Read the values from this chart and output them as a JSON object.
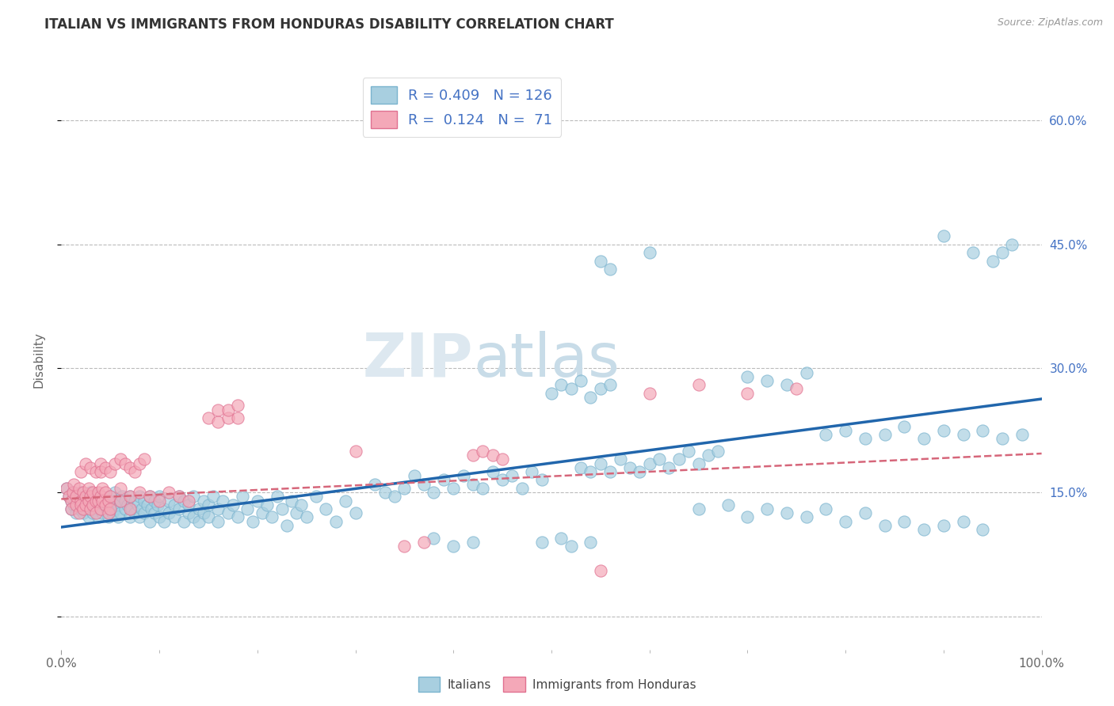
{
  "title": "ITALIAN VS IMMIGRANTS FROM HONDURAS DISABILITY CORRELATION CHART",
  "source": "Source: ZipAtlas.com",
  "ylabel": "Disability",
  "xlim": [
    0.0,
    1.0
  ],
  "ylim": [
    -0.04,
    0.66
  ],
  "yticks": [
    0.0,
    0.15,
    0.3,
    0.45,
    0.6
  ],
  "ytick_labels": [
    "",
    "15.0%",
    "30.0%",
    "45.0%",
    "60.0%"
  ],
  "xtick_labels": [
    "0.0%",
    "100.0%"
  ],
  "legend_R_italian": "0.409",
  "legend_N_italian": "126",
  "legend_R_honduras": "0.124",
  "legend_N_honduras": "71",
  "italian_color": "#a8cfe0",
  "italian_edge_color": "#7ab3ce",
  "honduras_color": "#f4a8b8",
  "honduras_edge_color": "#e07090",
  "italian_line_color": "#2166ac",
  "honduras_line_color": "#d6667a",
  "watermark_zip": "ZIP",
  "watermark_atlas": "atlas",
  "background_color": "#ffffff",
  "grid_color": "#bbbbbb",
  "italian_points": [
    [
      0.005,
      0.155
    ],
    [
      0.008,
      0.145
    ],
    [
      0.01,
      0.14
    ],
    [
      0.01,
      0.13
    ],
    [
      0.012,
      0.15
    ],
    [
      0.013,
      0.135
    ],
    [
      0.015,
      0.14
    ],
    [
      0.015,
      0.125
    ],
    [
      0.018,
      0.145
    ],
    [
      0.018,
      0.13
    ],
    [
      0.02,
      0.135
    ],
    [
      0.02,
      0.15
    ],
    [
      0.022,
      0.14
    ],
    [
      0.022,
      0.125
    ],
    [
      0.025,
      0.145
    ],
    [
      0.025,
      0.13
    ],
    [
      0.028,
      0.135
    ],
    [
      0.028,
      0.12
    ],
    [
      0.03,
      0.14
    ],
    [
      0.03,
      0.15
    ],
    [
      0.032,
      0.125
    ],
    [
      0.032,
      0.14
    ],
    [
      0.035,
      0.135
    ],
    [
      0.035,
      0.145
    ],
    [
      0.038,
      0.13
    ],
    [
      0.038,
      0.12
    ],
    [
      0.04,
      0.14
    ],
    [
      0.04,
      0.13
    ],
    [
      0.042,
      0.145
    ],
    [
      0.042,
      0.125
    ],
    [
      0.045,
      0.135
    ],
    [
      0.045,
      0.14
    ],
    [
      0.048,
      0.13
    ],
    [
      0.048,
      0.12
    ],
    [
      0.05,
      0.145
    ],
    [
      0.05,
      0.135
    ],
    [
      0.052,
      0.125
    ],
    [
      0.052,
      0.14
    ],
    [
      0.055,
      0.13
    ],
    [
      0.055,
      0.15
    ],
    [
      0.058,
      0.135
    ],
    [
      0.058,
      0.12
    ],
    [
      0.06,
      0.14
    ],
    [
      0.06,
      0.125
    ],
    [
      0.062,
      0.145
    ],
    [
      0.065,
      0.13
    ],
    [
      0.065,
      0.14
    ],
    [
      0.068,
      0.135
    ],
    [
      0.07,
      0.12
    ],
    [
      0.07,
      0.145
    ],
    [
      0.072,
      0.13
    ],
    [
      0.075,
      0.14
    ],
    [
      0.075,
      0.125
    ],
    [
      0.078,
      0.135
    ],
    [
      0.08,
      0.12
    ],
    [
      0.08,
      0.145
    ],
    [
      0.082,
      0.13
    ],
    [
      0.085,
      0.14
    ],
    [
      0.085,
      0.125
    ],
    [
      0.088,
      0.135
    ],
    [
      0.09,
      0.115
    ],
    [
      0.09,
      0.145
    ],
    [
      0.092,
      0.13
    ],
    [
      0.095,
      0.14
    ],
    [
      0.095,
      0.125
    ],
    [
      0.098,
      0.135
    ],
    [
      0.1,
      0.12
    ],
    [
      0.1,
      0.145
    ],
    [
      0.105,
      0.13
    ],
    [
      0.105,
      0.115
    ],
    [
      0.11,
      0.14
    ],
    [
      0.11,
      0.125
    ],
    [
      0.115,
      0.135
    ],
    [
      0.115,
      0.12
    ],
    [
      0.12,
      0.145
    ],
    [
      0.12,
      0.13
    ],
    [
      0.125,
      0.115
    ],
    [
      0.125,
      0.14
    ],
    [
      0.13,
      0.125
    ],
    [
      0.13,
      0.135
    ],
    [
      0.135,
      0.12
    ],
    [
      0.135,
      0.145
    ],
    [
      0.14,
      0.13
    ],
    [
      0.14,
      0.115
    ],
    [
      0.145,
      0.14
    ],
    [
      0.145,
      0.125
    ],
    [
      0.15,
      0.135
    ],
    [
      0.15,
      0.12
    ],
    [
      0.155,
      0.145
    ],
    [
      0.16,
      0.13
    ],
    [
      0.16,
      0.115
    ],
    [
      0.165,
      0.14
    ],
    [
      0.17,
      0.125
    ],
    [
      0.175,
      0.135
    ],
    [
      0.18,
      0.12
    ],
    [
      0.185,
      0.145
    ],
    [
      0.19,
      0.13
    ],
    [
      0.195,
      0.115
    ],
    [
      0.2,
      0.14
    ],
    [
      0.205,
      0.125
    ],
    [
      0.21,
      0.135
    ],
    [
      0.215,
      0.12
    ],
    [
      0.22,
      0.145
    ],
    [
      0.225,
      0.13
    ],
    [
      0.23,
      0.11
    ],
    [
      0.235,
      0.14
    ],
    [
      0.24,
      0.125
    ],
    [
      0.245,
      0.135
    ],
    [
      0.25,
      0.12
    ],
    [
      0.26,
      0.145
    ],
    [
      0.27,
      0.13
    ],
    [
      0.28,
      0.115
    ],
    [
      0.29,
      0.14
    ],
    [
      0.3,
      0.125
    ],
    [
      0.32,
      0.16
    ],
    [
      0.33,
      0.15
    ],
    [
      0.34,
      0.145
    ],
    [
      0.35,
      0.155
    ],
    [
      0.36,
      0.17
    ],
    [
      0.37,
      0.16
    ],
    [
      0.38,
      0.15
    ],
    [
      0.39,
      0.165
    ],
    [
      0.4,
      0.155
    ],
    [
      0.41,
      0.17
    ],
    [
      0.42,
      0.16
    ],
    [
      0.43,
      0.155
    ],
    [
      0.44,
      0.175
    ],
    [
      0.45,
      0.165
    ],
    [
      0.46,
      0.17
    ],
    [
      0.47,
      0.155
    ],
    [
      0.48,
      0.175
    ],
    [
      0.49,
      0.165
    ],
    [
      0.49,
      0.09
    ],
    [
      0.51,
      0.095
    ],
    [
      0.52,
      0.085
    ],
    [
      0.54,
      0.09
    ],
    [
      0.38,
      0.095
    ],
    [
      0.4,
      0.085
    ],
    [
      0.42,
      0.09
    ],
    [
      0.5,
      0.27
    ],
    [
      0.51,
      0.28
    ],
    [
      0.52,
      0.275
    ],
    [
      0.53,
      0.285
    ],
    [
      0.54,
      0.265
    ],
    [
      0.55,
      0.275
    ],
    [
      0.56,
      0.28
    ],
    [
      0.53,
      0.18
    ],
    [
      0.54,
      0.175
    ],
    [
      0.55,
      0.185
    ],
    [
      0.56,
      0.175
    ],
    [
      0.57,
      0.19
    ],
    [
      0.58,
      0.18
    ],
    [
      0.59,
      0.175
    ],
    [
      0.6,
      0.185
    ],
    [
      0.61,
      0.19
    ],
    [
      0.62,
      0.18
    ],
    [
      0.63,
      0.19
    ],
    [
      0.64,
      0.2
    ],
    [
      0.65,
      0.185
    ],
    [
      0.66,
      0.195
    ],
    [
      0.67,
      0.2
    ],
    [
      0.55,
      0.43
    ],
    [
      0.6,
      0.44
    ],
    [
      0.56,
      0.42
    ],
    [
      0.7,
      0.29
    ],
    [
      0.72,
      0.285
    ],
    [
      0.74,
      0.28
    ],
    [
      0.76,
      0.295
    ],
    [
      0.78,
      0.22
    ],
    [
      0.8,
      0.225
    ],
    [
      0.82,
      0.215
    ],
    [
      0.84,
      0.22
    ],
    [
      0.86,
      0.23
    ],
    [
      0.88,
      0.215
    ],
    [
      0.9,
      0.225
    ],
    [
      0.92,
      0.22
    ],
    [
      0.94,
      0.225
    ],
    [
      0.96,
      0.215
    ],
    [
      0.98,
      0.22
    ],
    [
      0.65,
      0.13
    ],
    [
      0.68,
      0.135
    ],
    [
      0.7,
      0.12
    ],
    [
      0.72,
      0.13
    ],
    [
      0.74,
      0.125
    ],
    [
      0.76,
      0.12
    ],
    [
      0.78,
      0.13
    ],
    [
      0.8,
      0.115
    ],
    [
      0.82,
      0.125
    ],
    [
      0.84,
      0.11
    ],
    [
      0.86,
      0.115
    ],
    [
      0.88,
      0.105
    ],
    [
      0.9,
      0.11
    ],
    [
      0.92,
      0.115
    ],
    [
      0.94,
      0.105
    ],
    [
      0.96,
      0.44
    ],
    [
      0.97,
      0.45
    ],
    [
      0.95,
      0.43
    ],
    [
      0.9,
      0.46
    ],
    [
      0.93,
      0.44
    ]
  ],
  "honduras_points": [
    [
      0.005,
      0.155
    ],
    [
      0.008,
      0.145
    ],
    [
      0.01,
      0.14
    ],
    [
      0.01,
      0.13
    ],
    [
      0.012,
      0.15
    ],
    [
      0.013,
      0.16
    ],
    [
      0.015,
      0.135
    ],
    [
      0.015,
      0.145
    ],
    [
      0.018,
      0.125
    ],
    [
      0.018,
      0.155
    ],
    [
      0.02,
      0.14
    ],
    [
      0.02,
      0.135
    ],
    [
      0.022,
      0.15
    ],
    [
      0.022,
      0.13
    ],
    [
      0.025,
      0.145
    ],
    [
      0.025,
      0.135
    ],
    [
      0.028,
      0.14
    ],
    [
      0.028,
      0.155
    ],
    [
      0.03,
      0.13
    ],
    [
      0.03,
      0.145
    ],
    [
      0.032,
      0.15
    ],
    [
      0.032,
      0.135
    ],
    [
      0.035,
      0.14
    ],
    [
      0.035,
      0.125
    ],
    [
      0.038,
      0.15
    ],
    [
      0.038,
      0.14
    ],
    [
      0.04,
      0.145
    ],
    [
      0.04,
      0.13
    ],
    [
      0.042,
      0.155
    ],
    [
      0.042,
      0.14
    ],
    [
      0.045,
      0.135
    ],
    [
      0.045,
      0.15
    ],
    [
      0.048,
      0.14
    ],
    [
      0.048,
      0.125
    ],
    [
      0.05,
      0.145
    ],
    [
      0.05,
      0.13
    ],
    [
      0.06,
      0.155
    ],
    [
      0.06,
      0.14
    ],
    [
      0.07,
      0.145
    ],
    [
      0.07,
      0.13
    ],
    [
      0.08,
      0.15
    ],
    [
      0.09,
      0.145
    ],
    [
      0.1,
      0.14
    ],
    [
      0.11,
      0.15
    ],
    [
      0.12,
      0.145
    ],
    [
      0.13,
      0.14
    ],
    [
      0.02,
      0.175
    ],
    [
      0.025,
      0.185
    ],
    [
      0.03,
      0.18
    ],
    [
      0.035,
      0.175
    ],
    [
      0.04,
      0.185
    ],
    [
      0.04,
      0.175
    ],
    [
      0.045,
      0.18
    ],
    [
      0.05,
      0.175
    ],
    [
      0.055,
      0.185
    ],
    [
      0.06,
      0.19
    ],
    [
      0.065,
      0.185
    ],
    [
      0.07,
      0.18
    ],
    [
      0.075,
      0.175
    ],
    [
      0.08,
      0.185
    ],
    [
      0.085,
      0.19
    ],
    [
      0.15,
      0.24
    ],
    [
      0.16,
      0.235
    ],
    [
      0.17,
      0.24
    ],
    [
      0.16,
      0.25
    ],
    [
      0.17,
      0.25
    ],
    [
      0.18,
      0.24
    ],
    [
      0.18,
      0.255
    ],
    [
      0.3,
      0.2
    ],
    [
      0.35,
      0.085
    ],
    [
      0.37,
      0.09
    ],
    [
      0.42,
      0.195
    ],
    [
      0.43,
      0.2
    ],
    [
      0.44,
      0.195
    ],
    [
      0.45,
      0.19
    ],
    [
      0.6,
      0.27
    ],
    [
      0.65,
      0.28
    ],
    [
      0.7,
      0.27
    ],
    [
      0.75,
      0.275
    ],
    [
      0.55,
      0.055
    ]
  ]
}
